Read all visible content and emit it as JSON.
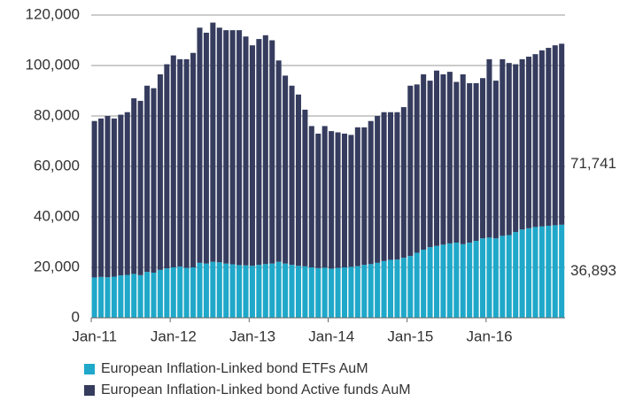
{
  "chart_data": {
    "type": "stacked_bar",
    "categories": [
      "Jan-11",
      null,
      null,
      null,
      null,
      null,
      null,
      null,
      null,
      null,
      null,
      null,
      "Jan-12",
      null,
      null,
      null,
      null,
      null,
      null,
      null,
      null,
      null,
      null,
      null,
      "Jan-13",
      null,
      null,
      null,
      null,
      null,
      null,
      null,
      null,
      null,
      null,
      null,
      "Jan-14",
      null,
      null,
      null,
      null,
      null,
      null,
      null,
      null,
      null,
      null,
      null,
      "Jan-15",
      null,
      null,
      null,
      null,
      null,
      null,
      null,
      null,
      null,
      null,
      null,
      "Jan-16",
      null,
      null,
      null,
      null,
      null,
      null,
      null,
      null,
      null,
      null,
      null
    ],
    "series": [
      {
        "name": "European Inflation-Linked bond ETFs AuM",
        "color": "#1fa8c9",
        "values": [
          16000,
          16200,
          16100,
          16300,
          16800,
          17000,
          17400,
          16900,
          18200,
          17900,
          19000,
          19600,
          20000,
          20300,
          19800,
          20000,
          21800,
          21500,
          22200,
          22000,
          21500,
          21200,
          20900,
          20800,
          20600,
          21000,
          21300,
          21500,
          22200,
          21500,
          21000,
          20600,
          20400,
          20000,
          19700,
          19900,
          19500,
          19800,
          20000,
          20200,
          20500,
          21000,
          21300,
          21800,
          22500,
          23000,
          23100,
          23800,
          24500,
          25800,
          27000,
          28000,
          28500,
          29000,
          29500,
          29800,
          29200,
          29800,
          30500,
          31500,
          31800,
          31500,
          32500,
          32800,
          34000,
          35000,
          35500,
          36000,
          36200,
          36500,
          36700,
          36893
        ],
        "value_labels": [
          null,
          null,
          null,
          null,
          null,
          null,
          null,
          null,
          null,
          null,
          null,
          null,
          null,
          null,
          null,
          null,
          null,
          null,
          null,
          null,
          null,
          null,
          null,
          null,
          null,
          null,
          null,
          null,
          null,
          null,
          null,
          null,
          null,
          null,
          null,
          null,
          null,
          null,
          null,
          null,
          null,
          null,
          null,
          null,
          null,
          null,
          null,
          null,
          null,
          null,
          null,
          null,
          null,
          null,
          null,
          null,
          null,
          null,
          null,
          null,
          null,
          null,
          null,
          null,
          null,
          null,
          null,
          null,
          null,
          null,
          null,
          "36,893"
        ]
      },
      {
        "name": "European Inflation-Linked bond Active funds AuM",
        "color": "#363c5e",
        "values": [
          62000,
          62800,
          63900,
          62700,
          63700,
          64500,
          69600,
          69100,
          73800,
          73100,
          77500,
          80900,
          84000,
          82200,
          82700,
          85000,
          93200,
          91500,
          94800,
          93000,
          92500,
          92800,
          93100,
          90700,
          87400,
          89500,
          90700,
          88500,
          79800,
          74500,
          71000,
          67900,
          62100,
          56000,
          53300,
          56100,
          54500,
          53700,
          53000,
          52300,
          55000,
          54500,
          56700,
          58200,
          59000,
          58500,
          58400,
          59700,
          67500,
          66700,
          69500,
          66000,
          69500,
          67500,
          68000,
          63700,
          67300,
          63200,
          62500,
          63500,
          70700,
          62500,
          70000,
          68200,
          66500,
          67500,
          68000,
          68500,
          69800,
          70500,
          71300,
          71741
        ],
        "value_labels": [
          null,
          null,
          null,
          null,
          null,
          null,
          null,
          null,
          null,
          null,
          null,
          null,
          null,
          null,
          null,
          null,
          null,
          null,
          null,
          null,
          null,
          null,
          null,
          null,
          null,
          null,
          null,
          null,
          null,
          null,
          null,
          null,
          null,
          null,
          null,
          null,
          null,
          null,
          null,
          null,
          null,
          null,
          null,
          null,
          null,
          null,
          null,
          null,
          null,
          null,
          null,
          null,
          null,
          null,
          null,
          null,
          null,
          null,
          null,
          null,
          null,
          null,
          null,
          null,
          null,
          null,
          null,
          null,
          null,
          null,
          null,
          "71,741"
        ]
      }
    ],
    "ylim": [
      0,
      120000
    ],
    "yticks": [
      0,
      {
        "value": 20000,
        "label": "20,000"
      },
      {
        "value": 40000,
        "label": "40,000"
      },
      {
        "value": 60000,
        "label": "60,000"
      },
      {
        "value": 80000,
        "label": "80,000"
      },
      {
        "value": 100000,
        "label": "100,000"
      },
      {
        "value": 120000,
        "label": "120,000"
      }
    ],
    "grid": true
  }
}
